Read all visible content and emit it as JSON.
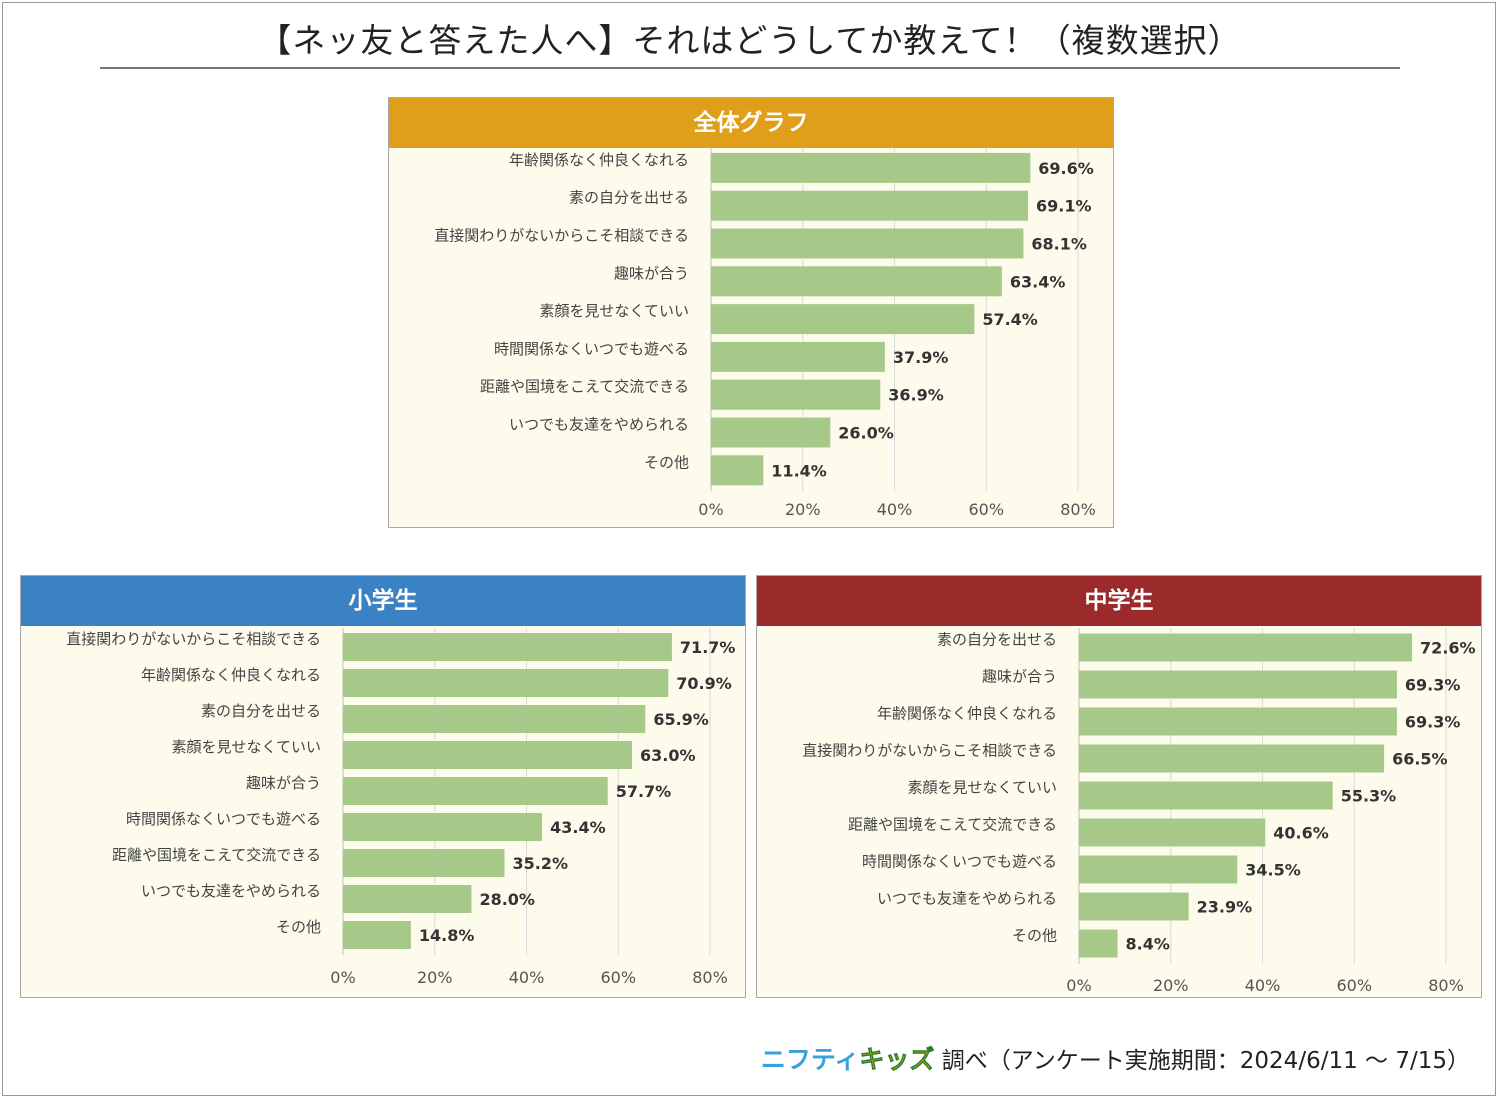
{
  "title": "【ネッ友と答えた人へ】それはどうしてか教えて！（複数選択）",
  "footer": {
    "logo_part1": "ニフティ",
    "logo_part2": "キッズ",
    "note": "調べ（アンケート実施期間：2024/6/11 ～ 7/15）"
  },
  "colors": {
    "bar": "#a6c98a",
    "grid": "#d9d9d9",
    "header_overall": "#e09f1b",
    "header_elementary": "#3b82c4",
    "header_junior": "#9b2a2a"
  },
  "chart_data": [
    {
      "id": "overall",
      "type": "bar",
      "orientation": "horizontal",
      "title": "全体グラフ",
      "categories": [
        "年齢関係なく仲良くなれる",
        "素の自分を出せる",
        "直接関わりがないからこそ相談できる",
        "趣味が合う",
        "素顔を見せなくていい",
        "時間関係なくいつでも遊べる",
        "距離や国境をこえて交流できる",
        "いつでも友達をやめられる",
        "その他"
      ],
      "values": [
        69.6,
        69.1,
        68.1,
        63.4,
        57.4,
        37.9,
        36.9,
        26.0,
        11.4
      ],
      "value_labels": [
        "69.6%",
        "69.1%",
        "68.1%",
        "63.4%",
        "57.4%",
        "37.9%",
        "36.9%",
        "26.0%",
        "11.4%"
      ],
      "xlim": [
        0,
        80
      ],
      "ticks": [
        0,
        20,
        40,
        60,
        80
      ],
      "tick_labels": [
        "0%",
        "20%",
        "40%",
        "60%",
        "80%"
      ]
    },
    {
      "id": "elementary",
      "type": "bar",
      "orientation": "horizontal",
      "title": "小学生",
      "categories": [
        "直接関わりがないからこそ相談できる",
        "年齢関係なく仲良くなれる",
        "素の自分を出せる",
        "素顔を見せなくていい",
        "趣味が合う",
        "時間関係なくいつでも遊べる",
        "距離や国境をこえて交流できる",
        "いつでも友達をやめられる",
        "その他"
      ],
      "values": [
        71.7,
        70.9,
        65.9,
        63.0,
        57.7,
        43.4,
        35.2,
        28.0,
        14.8
      ],
      "value_labels": [
        "71.7%",
        "70.9%",
        "65.9%",
        "63.0%",
        "57.7%",
        "43.4%",
        "35.2%",
        "28.0%",
        "14.8%"
      ],
      "xlim": [
        0,
        80
      ],
      "ticks": [
        0,
        20,
        40,
        60,
        80
      ],
      "tick_labels": [
        "0%",
        "20%",
        "40%",
        "60%",
        "80%"
      ]
    },
    {
      "id": "junior",
      "type": "bar",
      "orientation": "horizontal",
      "title": "中学生",
      "categories": [
        "素の自分を出せる",
        "趣味が合う",
        "年齢関係なく仲良くなれる",
        "直接関わりがないからこそ相談できる",
        "素顔を見せなくていい",
        "距離や国境をこえて交流できる",
        "時間関係なくいつでも遊べる",
        "いつでも友達をやめられる",
        "その他"
      ],
      "values": [
        72.6,
        69.3,
        69.3,
        66.5,
        55.3,
        40.6,
        34.5,
        23.9,
        8.4
      ],
      "value_labels": [
        "72.6%",
        "69.3%",
        "69.3%",
        "66.5%",
        "55.3%",
        "40.6%",
        "34.5%",
        "23.9%",
        "8.4%"
      ],
      "xlim": [
        0,
        80
      ],
      "ticks": [
        0,
        20,
        40,
        60,
        80
      ],
      "tick_labels": [
        "0%",
        "20%",
        "40%",
        "60%",
        "80%"
      ]
    }
  ]
}
